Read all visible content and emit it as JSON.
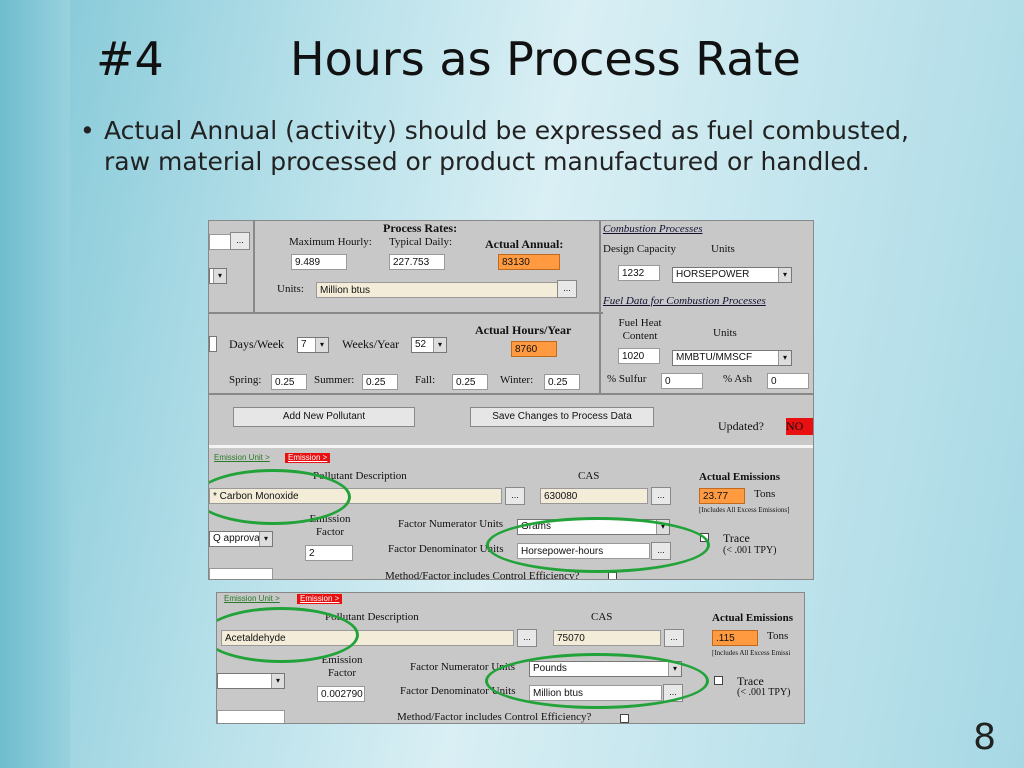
{
  "slide": {
    "number_label": "#4",
    "title": "Hours as Process Rate",
    "bullet_char": "•",
    "bullet_text": "Actual Annual (activity) should be expressed as fuel combusted, raw material processed or product manufactured or handled.",
    "page_number": "8"
  },
  "shot1": {
    "process_rates_title": "Process Rates:",
    "max_hourly_label": "Maximum Hourly:",
    "typical_daily_label": "Typical Daily:",
    "actual_annual_label": "Actual Annual:",
    "max_hourly_value": "9.489",
    "typical_daily_value": "227.753",
    "actual_annual_value": "83130",
    "units_label": "Units:",
    "units_value": "Million btus",
    "actual_hours_label": "Actual Hours/Year",
    "actual_hours_value": "8760",
    "days_week_label": "Days/Week",
    "days_week_value": "7",
    "weeks_year_label": "Weeks/Year",
    "weeks_year_value": "52",
    "spring_label": "Spring:",
    "spring_value": "0.25",
    "summer_label": "Summer:",
    "summer_value": "0.25",
    "fall_label": "Fall:",
    "fall_value": "0.25",
    "winter_label": "Winter:",
    "winter_value": "0.25",
    "combustion_header": "Combustion Processes",
    "design_capacity_label": "Design Capacity",
    "units_col_label": "Units",
    "design_capacity_value": "1232",
    "design_units_value": "HORSEPOWER",
    "fuel_data_header": "Fuel Data for Combustion Processes",
    "fuel_heat_label": "Fuel Heat Content",
    "fuel_units_label": "Units",
    "fuel_heat_value": "1020",
    "fuel_units_value": "MMBTU/MMSCF",
    "sulfur_label": "% Sulfur",
    "sulfur_value": "0",
    "ash_label": "% Ash",
    "ash_value": "0",
    "add_pollutant_button": "Add New Pollutant",
    "save_changes_button": "Save Changes to Process Data",
    "updated_label": "Updated?",
    "updated_value": "NO",
    "tab_emission_unit": "Emission Unit >",
    "tab_emission": "Emission >",
    "pollutant_desc_label": "Pollutant Description",
    "cas_label": "CAS",
    "actual_emissions_label": "Actual Emissions",
    "pollutant_value": "* Carbon Monoxide",
    "cas_value": "630080",
    "actual_emissions_value": "23.77",
    "tons_label": "Tons",
    "includes_excess": "[Includes All Excess Emissions]",
    "emission_factor_label": "Emission Factor",
    "factor_num_label": "Factor Numerator Units",
    "factor_num_value": "Grams",
    "factor_den_label": "Factor Denominator Units",
    "factor_den_value": "Horsepower-hours",
    "approval_value": "Q approval)",
    "emission_factor_value": "2",
    "trace_label": "Trace",
    "trace_sub": "(< .001 TPY)",
    "method_label": "Method/Factor includes Control Efficiency?"
  },
  "shot2": {
    "tab_emission_unit": "Emission Unit >",
    "tab_emission": "Emission >",
    "pollutant_desc_label": "Pollutant Description",
    "cas_label": "CAS",
    "actual_emissions_label": "Actual Emissions",
    "pollutant_value": "Acetaldehyde",
    "cas_value": "75070",
    "actual_emissions_value": ".115",
    "tons_label": "Tons",
    "includes_excess": "[Includes All Excess Emissi",
    "emission_factor_label": "Emission Factor",
    "factor_num_label": "Factor Numerator Units",
    "factor_num_value": "Pounds",
    "factor_den_label": "Factor Denominator Units",
    "factor_den_value": "Million btus",
    "emission_factor_value": "0.002790",
    "trace_label": "Trace",
    "trace_sub": "(< .001 TPY)",
    "method_label": "Method/Factor includes Control Efficiency?"
  },
  "ui": {
    "ellipsis": "...",
    "dropdown_arrow": "▾",
    "highlight_color": "#22a33a",
    "actual_value_color": "#ff9a40",
    "updated_no_color": "#e81010"
  }
}
